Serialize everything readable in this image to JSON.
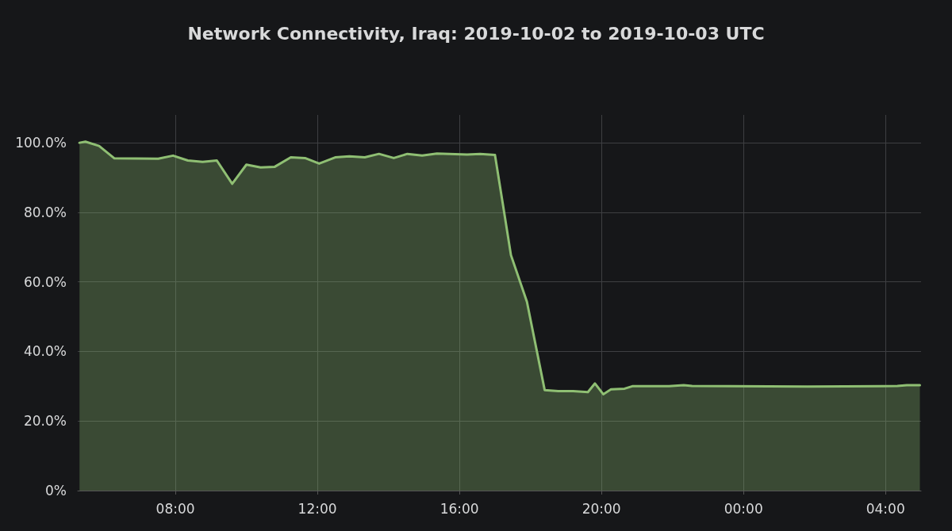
{
  "chart_data": {
    "type": "area",
    "title": "Network Connectivity, Iraq: 2019-10-02 to 2019-10-03 UTC",
    "x": [
      "2019-10-02T05:18",
      "2019-10-02T05:28",
      "2019-10-02T05:51",
      "2019-10-02T06:17",
      "2019-10-02T07:31",
      "2019-10-02T07:56",
      "2019-10-02T08:21",
      "2019-10-02T08:46",
      "2019-10-02T09:10",
      "2019-10-02T09:36",
      "2019-10-02T10:00",
      "2019-10-02T10:24",
      "2019-10-02T10:48",
      "2019-10-02T11:15",
      "2019-10-02T11:39",
      "2019-10-02T12:03",
      "2019-10-02T12:30",
      "2019-10-02T12:54",
      "2019-10-02T13:20",
      "2019-10-02T13:44",
      "2019-10-02T14:09",
      "2019-10-02T14:32",
      "2019-10-02T14:57",
      "2019-10-02T15:22",
      "2019-10-02T16:13",
      "2019-10-02T16:35",
      "2019-10-02T17:00",
      "2019-10-02T17:13",
      "2019-10-02T17:27",
      "2019-10-02T17:54",
      "2019-10-02T18:24",
      "2019-10-02T18:47",
      "2019-10-02T19:12",
      "2019-10-02T19:37",
      "2019-10-02T19:49",
      "2019-10-02T20:03",
      "2019-10-02T20:16",
      "2019-10-02T20:39",
      "2019-10-02T20:52",
      "2019-10-02T21:54",
      "2019-10-02T22:19",
      "2019-10-02T22:33",
      "2019-10-03T01:48",
      "2019-10-03T03:54",
      "2019-10-03T04:20",
      "2019-10-03T04:36",
      "2019-10-03T04:58"
    ],
    "series": [
      {
        "color": "#8fbf73",
        "values": [
          100,
          100.3,
          99.1,
          95.5,
          95.4,
          96.3,
          94.9,
          94.5,
          94.9,
          88.2,
          93.7,
          92.9,
          93.1,
          95.8,
          95.6,
          94,
          95.8,
          96.1,
          95.8,
          96.8,
          95.6,
          96.8,
          96.3,
          96.9,
          96.6,
          96.8,
          96.5,
          82.7,
          67.7,
          54.3,
          28.9,
          28.6,
          28.6,
          28.3,
          30.8,
          27.7,
          29.1,
          29.3,
          30,
          30,
          30.3,
          30.1,
          29.9,
          30,
          30.1,
          30.3,
          30.3
        ]
      }
    ],
    "xlim": [
      "2019-10-02T05:15",
      "2019-10-03T05:00"
    ],
    "xticks": [
      {
        "value": "2019-10-02T08:00",
        "label": "08:00"
      },
      {
        "value": "2019-10-02T12:00",
        "label": "12:00"
      },
      {
        "value": "2019-10-02T16:00",
        "label": "16:00"
      },
      {
        "value": "2019-10-02T20:00",
        "label": "20:00"
      },
      {
        "value": "2019-10-03T00:00",
        "label": "00:00"
      },
      {
        "value": "2019-10-03T04:00",
        "label": "04:00"
      }
    ],
    "ylim": [
      0,
      108
    ],
    "yticks": [
      {
        "value": 0,
        "label": "0%"
      },
      {
        "value": 20,
        "label": "20.0%"
      },
      {
        "value": 40,
        "label": "40.0%"
      },
      {
        "value": 60,
        "label": "60.0%"
      },
      {
        "value": 80,
        "label": "80.0%"
      },
      {
        "value": 100,
        "label": "100.0%"
      }
    ],
    "grid": true,
    "marker": "none",
    "line_style": "solid"
  }
}
